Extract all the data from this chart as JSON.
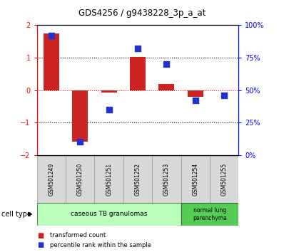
{
  "title": "GDS4256 / g9438228_3p_a_at",
  "samples": [
    "GSM501249",
    "GSM501250",
    "GSM501251",
    "GSM501252",
    "GSM501253",
    "GSM501254",
    "GSM501255"
  ],
  "red_bars": [
    1.75,
    -1.6,
    -0.07,
    1.03,
    0.18,
    -0.2,
    -0.02
  ],
  "blue_dots_pct": [
    92,
    10,
    35,
    82,
    70,
    42,
    46
  ],
  "ylim_left": [
    -2,
    2
  ],
  "ylim_right": [
    0,
    100
  ],
  "yticks_left": [
    -2,
    -1,
    0,
    1,
    2
  ],
  "yticks_right": [
    0,
    25,
    50,
    75,
    100
  ],
  "ytick_labels_right": [
    "0%",
    "25%",
    "50%",
    "75%",
    "100%"
  ],
  "bar_color": "#cc2222",
  "dot_color": "#2233cc",
  "cell_type_1_label": "caseous TB granulomas",
  "cell_type_1_color": "#bbffbb",
  "cell_type_1_samples": 5,
  "cell_type_2_label": "normal lung\nparenchyma",
  "cell_type_2_color": "#55cc55",
  "cell_type_2_samples": 2,
  "legend_bar_label": "transformed count",
  "legend_dot_label": "percentile rank within the sample",
  "cell_type_label": "cell type",
  "bg_color": "#ffffff",
  "sample_box_color": "#d8d8d8",
  "bar_width": 0.55,
  "dot_size": 40
}
